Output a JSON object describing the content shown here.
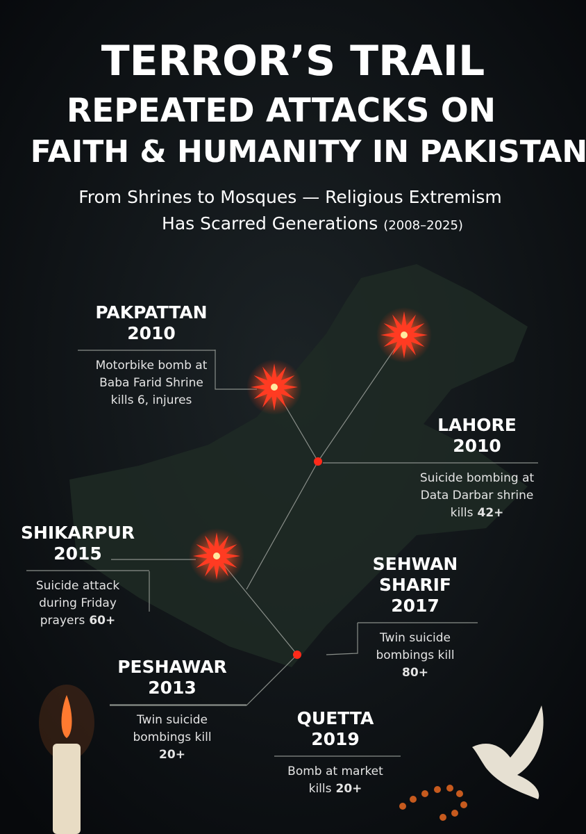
{
  "header": {
    "title": [
      "TERROR’S TRAIL",
      "REPEATED ATTACKS ON",
      "FAITH & HUMANITY IN PAKISTAN"
    ],
    "subtitle": [
      "From Shrines to Mosques — Religious Extremism",
      "Has Scarred Generations"
    ],
    "period": "(2008–2025)"
  },
  "events": [
    {
      "place": [
        "PAKPATTAN"
      ],
      "year": "2010",
      "lines": [
        {
          "text": "Motorbike bomb at"
        },
        {
          "text": "Baba Farid Shrine"
        },
        {
          "text": "kills 6, injures"
        }
      ]
    },
    {
      "place": [
        "LAHORE"
      ],
      "year": "2010",
      "lines": [
        {
          "text": "Suicide bombing at"
        },
        {
          "text": "Data Darbar shrine"
        },
        {
          "text": "kills",
          "figure": "42+"
        }
      ]
    },
    {
      "place": [
        "SHIKARPUR"
      ],
      "year": "2015",
      "lines": [
        {
          "text": "Suicide attack"
        },
        {
          "text": "during Friday"
        },
        {
          "text": "prayers",
          "figure": "60+"
        }
      ]
    },
    {
      "place": [
        "SEHWAN",
        "SHARIF"
      ],
      "year": "2017",
      "lines": [
        {
          "text": "Twin suicide"
        },
        {
          "text": "bombings kill"
        },
        {
          "figure": "80+"
        }
      ]
    },
    {
      "place": [
        "PESHAWAR"
      ],
      "year": "2013",
      "lines": [
        {
          "text": "Twin suicide"
        },
        {
          "text": "bombings kill"
        },
        {
          "figure": "20+"
        }
      ]
    },
    {
      "place": [
        "QUETTA"
      ],
      "year": "2019",
      "lines": [
        {
          "text": "Bomb at market"
        },
        {
          "text": "kills",
          "figure": "20+"
        }
      ]
    }
  ]
}
